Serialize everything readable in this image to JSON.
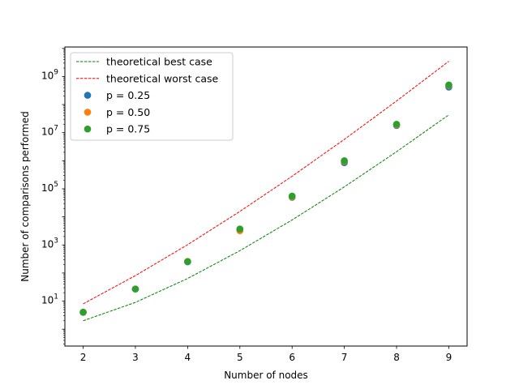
{
  "chart_data": {
    "type": "scatter",
    "xlabel": "Number of nodes",
    "ylabel": "Number of comparisons performed",
    "xlim": [
      1.65,
      9.35
    ],
    "ylim_log10": [
      -0.6,
      10.05
    ],
    "y_scale": "log",
    "x_ticks": [
      "2",
      "3",
      "4",
      "5",
      "6",
      "7",
      "8",
      "9"
    ],
    "x_tick_values": [
      2,
      3,
      4,
      5,
      6,
      7,
      8,
      9
    ],
    "y_ticks": [
      {
        "base": "10",
        "exp": "1",
        "value": 10
      },
      {
        "base": "10",
        "exp": "3",
        "value": 1000
      },
      {
        "base": "10",
        "exp": "5",
        "value": 100000
      },
      {
        "base": "10",
        "exp": "7",
        "value": 10000000
      },
      {
        "base": "10",
        "exp": "9",
        "value": 1000000000
      }
    ],
    "grid": false,
    "legend_position": "upper-left",
    "lines": [
      {
        "name": "theoretical best case",
        "color": "#008000",
        "style": "dashed",
        "x": [
          2,
          3,
          4,
          5,
          6,
          7,
          8,
          9
        ],
        "y": [
          2,
          9,
          64,
          625,
          7776,
          117649,
          2097152,
          43046721
        ]
      },
      {
        "name": "theoretical worst case",
        "color": "#ff0000",
        "style": "dashed",
        "x": [
          2,
          3,
          4,
          5,
          6,
          7,
          8,
          9
        ],
        "y": [
          8,
          81,
          1024,
          15625,
          279936,
          5764801,
          134217728,
          3486784401
        ]
      }
    ],
    "series": [
      {
        "name": "p = 0.25",
        "color": "#1f77b4",
        "x": [
          2,
          3,
          4,
          5,
          6,
          7,
          8,
          9
        ],
        "y": [
          4,
          27,
          250,
          3500,
          50000,
          850000,
          18000000,
          420000000
        ]
      },
      {
        "name": "p = 0.50",
        "color": "#ff7f0e",
        "x": [
          2,
          3,
          4,
          5,
          6,
          7,
          8,
          9
        ],
        "y": [
          4,
          27,
          260,
          3200,
          52000,
          950000,
          19000000,
          480000000
        ]
      },
      {
        "name": "p = 0.75",
        "color": "#2ca02c",
        "x": [
          2,
          3,
          4,
          5,
          6,
          7,
          8,
          9
        ],
        "y": [
          4,
          27,
          255,
          3700,
          55000,
          1000000,
          20000000,
          500000000
        ]
      }
    ]
  }
}
